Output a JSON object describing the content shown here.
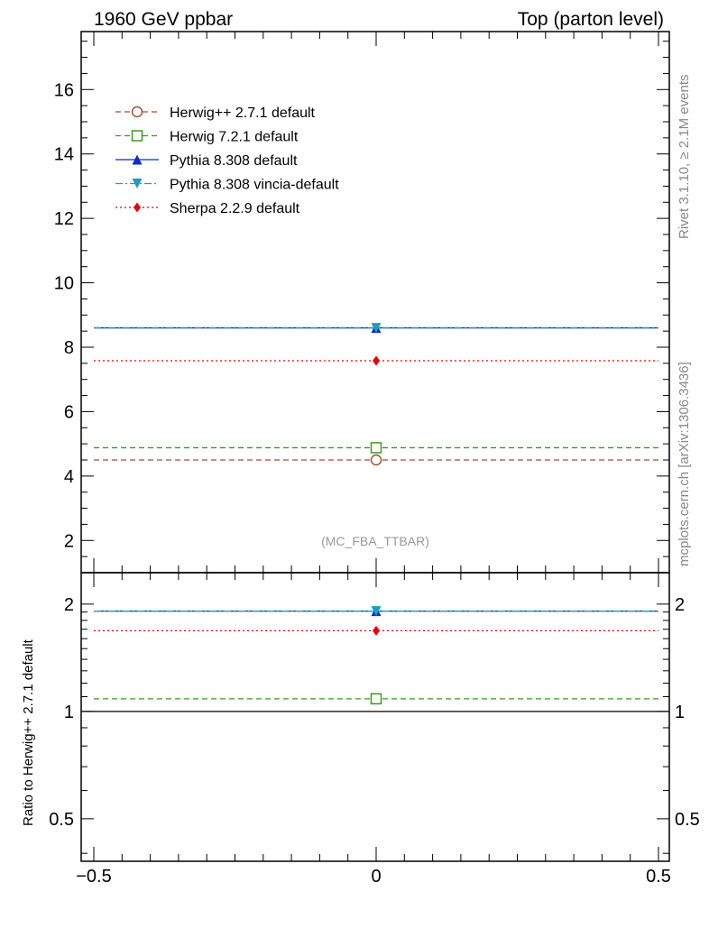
{
  "chart_data": {
    "type": "line",
    "title_left": "1960 GeV ppbar",
    "title_right": "Top (parton level)",
    "analysis_label": "(MC_FBA_TTBAR)",
    "side_label_top": "Rivet 3.1.10, ≥ 2.1M events",
    "side_label_bottom": "mcplots.cern.ch [arXiv:1306.3436]",
    "xlim": [
      -0.5,
      0.5
    ],
    "x_ticks": [
      -0.5,
      0,
      0.5
    ],
    "x_tick_labels": [
      "−0.5",
      "0",
      "0.5"
    ],
    "main": {
      "ylim": [
        1.0,
        17.8
      ],
      "y_ticks": [
        2,
        4,
        6,
        8,
        10,
        12,
        14,
        16
      ],
      "y_tick_labels": [
        "2",
        "4",
        "6",
        "8",
        "10",
        "12",
        "14",
        "16"
      ]
    },
    "ratio": {
      "ylabel": "Ratio to Herwig++ 2.7.1 default",
      "scale": "log",
      "ylim": [
        0.38,
        2.45
      ],
      "y_ticks": [
        0.5,
        1,
        2
      ],
      "y_tick_labels": [
        "0.5",
        "1",
        "2"
      ]
    },
    "series": [
      {
        "name": "Herwig++ 2.7.1 default",
        "color": "#a0522d",
        "dash": "dashed",
        "marker": "open-circle",
        "x": 0,
        "value": 4.5,
        "ratio": 1.0
      },
      {
        "name": "Herwig 7.2.1 default",
        "color": "#3a9a1a",
        "dash": "dashed",
        "marker": "open-square",
        "x": 0,
        "value": 4.88,
        "ratio": 1.085
      },
      {
        "name": "Pythia 8.308 default",
        "color": "#0a2bd0",
        "dash": "solid",
        "marker": "filled-triangle-up",
        "x": 0,
        "value": 8.6,
        "ratio": 1.911
      },
      {
        "name": "Pythia 8.308 vincia-default",
        "color": "#1a9ec0",
        "dash": "dashdot",
        "marker": "filled-triangle-down",
        "x": 0,
        "value": 8.6,
        "ratio": 1.911
      },
      {
        "name": "Sherpa 2.2.9 default",
        "color": "#ee0000",
        "dash": "dotted",
        "marker": "filled-diamond",
        "x": 0,
        "value": 7.58,
        "ratio": 1.684
      }
    ]
  }
}
